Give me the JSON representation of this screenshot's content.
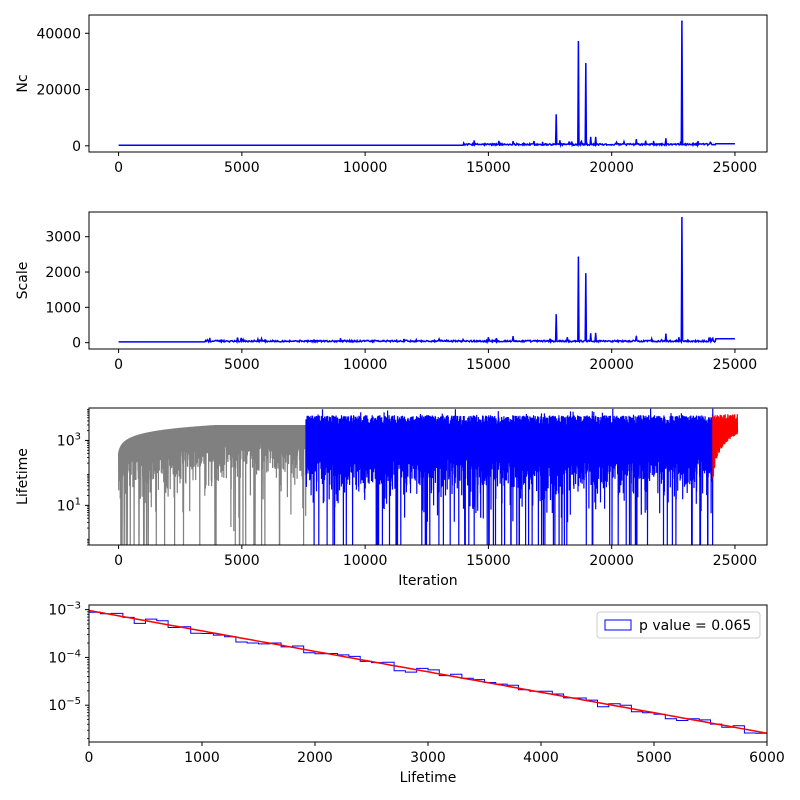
{
  "colors": {
    "series_main": "#0000ff",
    "series_burnin": "#808080",
    "series_tail": "#ff0000",
    "fit_line": "#ff0000",
    "histogram": "#0000ff",
    "axes": "#000000"
  },
  "chart_data": [
    {
      "type": "line",
      "ylabel": "Nc",
      "xlabel": "",
      "xlim": [
        -1200,
        26300
      ],
      "ylim": [
        -2200,
        46500
      ],
      "xticks": [
        0,
        5000,
        10000,
        15000,
        20000,
        25000
      ],
      "xtick_labels": [
        "0",
        "5000",
        "10000",
        "15000",
        "20000",
        "25000"
      ],
      "yticks": [
        0,
        20000,
        40000
      ],
      "ytick_labels": [
        "0",
        "20000",
        "40000"
      ],
      "baseline": 200,
      "noise_start": 14000,
      "noise_end": 24200,
      "flat_end": 25000,
      "flat_value": 700,
      "spikes": [
        {
          "x": 16000,
          "y": 1500
        },
        {
          "x": 17200,
          "y": 1200
        },
        {
          "x": 17750,
          "y": 11000
        },
        {
          "x": 17900,
          "y": 1800
        },
        {
          "x": 18650,
          "y": 37000
        },
        {
          "x": 18950,
          "y": 29200
        },
        {
          "x": 19150,
          "y": 3000
        },
        {
          "x": 19350,
          "y": 3000
        },
        {
          "x": 20200,
          "y": 1200
        },
        {
          "x": 21000,
          "y": 2200
        },
        {
          "x": 21700,
          "y": 1500
        },
        {
          "x": 22200,
          "y": 2500
        },
        {
          "x": 22850,
          "y": 44300
        },
        {
          "x": 23500,
          "y": 1500
        },
        {
          "x": 24000,
          "y": 1200
        }
      ],
      "series": [
        {
          "values_ref": "spikes"
        }
      ]
    },
    {
      "type": "line",
      "ylabel": "Scale",
      "xlabel": "",
      "xlim": [
        -1200,
        26300
      ],
      "ylim": [
        -180,
        3700
      ],
      "xticks": [
        0,
        5000,
        10000,
        15000,
        20000,
        25000
      ],
      "xtick_labels": [
        "0",
        "5000",
        "10000",
        "15000",
        "20000",
        "25000"
      ],
      "yticks": [
        0,
        1000,
        2000,
        3000
      ],
      "ytick_labels": [
        "0",
        "1000",
        "2000",
        "3000"
      ],
      "baseline": 20,
      "noise_start": 3500,
      "noise_end": 24200,
      "flat_end": 25000,
      "flat_value": 110,
      "spikes": [
        {
          "x": 3700,
          "y": 120
        },
        {
          "x": 9000,
          "y": 110
        },
        {
          "x": 13000,
          "y": 100
        },
        {
          "x": 16000,
          "y": 170
        },
        {
          "x": 17750,
          "y": 790
        },
        {
          "x": 18650,
          "y": 2420
        },
        {
          "x": 18950,
          "y": 1950
        },
        {
          "x": 19150,
          "y": 250
        },
        {
          "x": 19350,
          "y": 260
        },
        {
          "x": 21000,
          "y": 180
        },
        {
          "x": 22200,
          "y": 240
        },
        {
          "x": 22850,
          "y": 3540
        },
        {
          "x": 24000,
          "y": 130
        }
      ]
    },
    {
      "type": "line",
      "ylabel": "Lifetime",
      "xlabel": "Iteration",
      "scale_y": "log",
      "xlim": [
        -1200,
        26300
      ],
      "ylim": [
        0.6,
        10000
      ],
      "xticks": [
        0,
        5000,
        10000,
        15000,
        20000,
        25000
      ],
      "xtick_labels": [
        "0",
        "5000",
        "10000",
        "15000",
        "20000",
        "25000"
      ],
      "yticks": [
        10,
        1000
      ],
      "ytick_labels": [
        "10^1",
        "10^3"
      ],
      "segments": [
        {
          "name": "burn-in",
          "from": 0,
          "to": 7600,
          "color_key": "series_burnin"
        },
        {
          "name": "main",
          "from": 7600,
          "to": 24100,
          "color_key": "series_main"
        },
        {
          "name": "tail",
          "from": 24100,
          "to": 25100,
          "color_key": "series_tail"
        }
      ],
      "upper_level": 5000
    },
    {
      "type": "histogram",
      "xlabel": "Lifetime",
      "ylabel": "",
      "scale_y": "log",
      "xlim": [
        0,
        6000
      ],
      "ylim": [
        1.7e-06,
        0.00125
      ],
      "xticks": [
        0,
        1000,
        2000,
        3000,
        4000,
        5000,
        6000
      ],
      "xtick_labels": [
        "0",
        "1000",
        "2000",
        "3000",
        "4000",
        "5000",
        "6000"
      ],
      "yticks": [
        1e-05,
        0.0001,
        0.001
      ],
      "ytick_labels": [
        "10^-5",
        "10^-4",
        "10^-3"
      ],
      "legend": {
        "label": "p value = 0.065",
        "position": "upper right"
      },
      "fit": {
        "type": "exponential",
        "y0": 0.00096,
        "y_end": 2.6e-06,
        "x_end": 6000
      },
      "bins": {
        "width": 100,
        "start": 0
      }
    }
  ]
}
